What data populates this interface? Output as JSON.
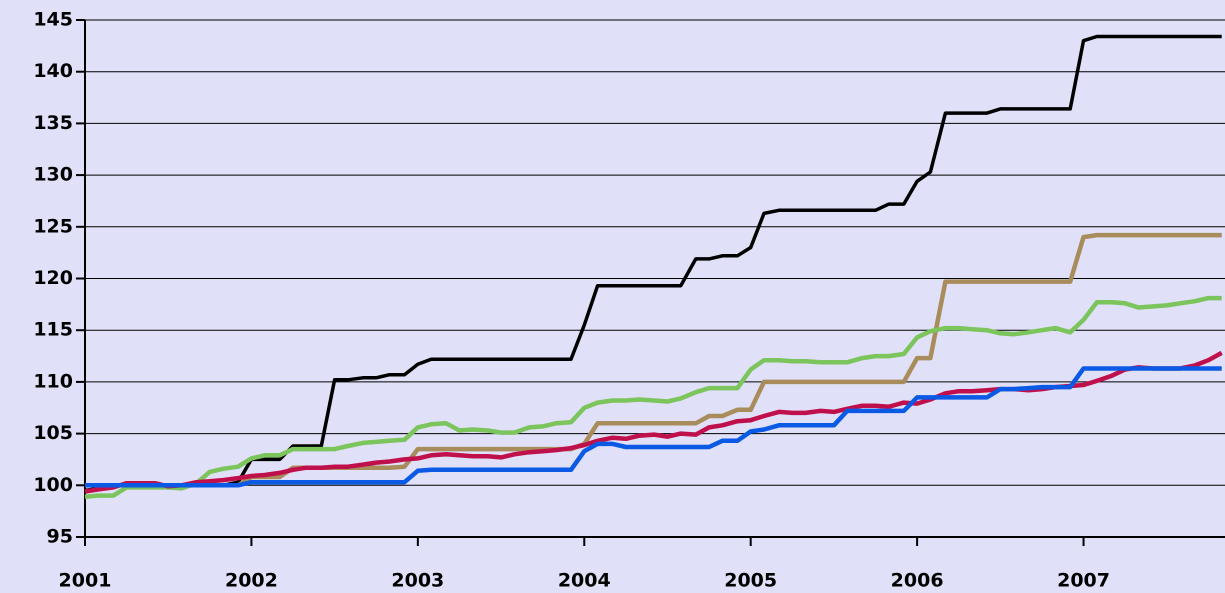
{
  "chart_data": {
    "type": "line",
    "x": [
      2001,
      2001.08,
      2001.17,
      2001.25,
      2001.33,
      2001.42,
      2001.5,
      2001.58,
      2001.67,
      2001.75,
      2001.83,
      2001.92,
      2002,
      2002.08,
      2002.17,
      2002.25,
      2002.33,
      2002.42,
      2002.5,
      2002.58,
      2002.67,
      2002.75,
      2002.83,
      2002.92,
      2003,
      2003.08,
      2003.17,
      2003.25,
      2003.33,
      2003.42,
      2003.5,
      2003.58,
      2003.67,
      2003.75,
      2003.83,
      2003.92,
      2004,
      2004.08,
      2004.17,
      2004.25,
      2004.33,
      2004.42,
      2004.5,
      2004.58,
      2004.67,
      2004.75,
      2004.83,
      2004.92,
      2005,
      2005.08,
      2005.17,
      2005.25,
      2005.33,
      2005.42,
      2005.5,
      2005.58,
      2005.67,
      2005.75,
      2005.83,
      2005.92,
      2006,
      2006.08,
      2006.17,
      2006.25,
      2006.33,
      2006.42,
      2006.5,
      2006.58,
      2006.67,
      2006.75,
      2006.83,
      2006.92,
      2007,
      2007.08,
      2007.17,
      2007.25,
      2007.33,
      2007.42,
      2007.5,
      2007.58,
      2007.67,
      2007.75,
      2007.83
    ],
    "series": [
      {
        "color": "#000000",
        "values": [
          99.5,
          99.7,
          100,
          100,
          100,
          100,
          100,
          100,
          100,
          100,
          100,
          100.3,
          102.5,
          102.5,
          102.5,
          103.8,
          103.8,
          103.8,
          110.2,
          110.2,
          110.4,
          110.4,
          110.7,
          110.7,
          111.7,
          112.2,
          112.2,
          112.2,
          112.2,
          112.2,
          112.2,
          112.2,
          112.2,
          112.2,
          112.2,
          112.2,
          115.5,
          119.3,
          119.3,
          119.3,
          119.3,
          119.3,
          119.3,
          119.3,
          121.9,
          121.9,
          122.2,
          122.2,
          123,
          126.3,
          126.6,
          126.6,
          126.6,
          126.6,
          126.6,
          126.6,
          126.6,
          126.6,
          127.2,
          127.2,
          129.4,
          130.3,
          136,
          136,
          136,
          136,
          136.4,
          136.4,
          136.4,
          136.4,
          136.4,
          136.4,
          143,
          143.4,
          143.4,
          143.4,
          143.4,
          143.4,
          143.4,
          143.4,
          143.4,
          143.4,
          143.4
        ]
      },
      {
        "color": "#a88c5c",
        "values": [
          100,
          100,
          100,
          100,
          100,
          100,
          100,
          100,
          100,
          100,
          100,
          100,
          100.8,
          100.8,
          100.8,
          101.7,
          101.7,
          101.7,
          101.7,
          101.7,
          101.7,
          101.7,
          101.7,
          101.8,
          103.5,
          103.5,
          103.5,
          103.5,
          103.5,
          103.5,
          103.5,
          103.5,
          103.5,
          103.5,
          103.5,
          103.5,
          104,
          106,
          106,
          106,
          106,
          106,
          106,
          106,
          106,
          106.7,
          106.7,
          107.3,
          107.3,
          110,
          110,
          110,
          110,
          110,
          110,
          110,
          110,
          110,
          110,
          110,
          112.3,
          112.3,
          119.7,
          119.7,
          119.7,
          119.7,
          119.7,
          119.7,
          119.7,
          119.7,
          119.7,
          119.7,
          124,
          124.2,
          124.2,
          124.2,
          124.2,
          124.2,
          124.2,
          124.2,
          124.2,
          124.2,
          124.2
        ]
      },
      {
        "color": "#7cc45c",
        "values": [
          98.9,
          99,
          99,
          99.8,
          99.8,
          99.8,
          99.8,
          99.7,
          100.2,
          101.3,
          101.6,
          101.8,
          102.6,
          102.9,
          102.9,
          103.5,
          103.5,
          103.5,
          103.5,
          103.8,
          104.1,
          104.2,
          104.3,
          104.4,
          105.6,
          105.9,
          106,
          105.3,
          105.4,
          105.3,
          105.1,
          105.1,
          105.6,
          105.7,
          106,
          106.1,
          107.5,
          108,
          108.2,
          108.2,
          108.3,
          108.2,
          108.1,
          108.4,
          109,
          109.4,
          109.4,
          109.4,
          111.2,
          112.1,
          112.1,
          112,
          112,
          111.9,
          111.9,
          111.9,
          112.3,
          112.5,
          112.5,
          112.7,
          114.3,
          114.9,
          115.2,
          115.2,
          115.1,
          115,
          114.7,
          114.6,
          114.8,
          115,
          115.2,
          114.8,
          116,
          117.7,
          117.7,
          117.6,
          117.2,
          117.3,
          117.4,
          117.6,
          117.8,
          118.1,
          118.1
        ]
      },
      {
        "color": "#c0104c",
        "values": [
          99.4,
          99.6,
          99.8,
          100.2,
          100.2,
          100.2,
          99.9,
          100,
          100.3,
          100.4,
          100.5,
          100.7,
          100.9,
          101,
          101.2,
          101.5,
          101.7,
          101.7,
          101.8,
          101.8,
          102,
          102.2,
          102.3,
          102.5,
          102.6,
          102.9,
          103,
          102.9,
          102.8,
          102.8,
          102.7,
          103,
          103.2,
          103.3,
          103.4,
          103.6,
          103.9,
          104.3,
          104.6,
          104.5,
          104.8,
          104.9,
          104.7,
          105,
          104.9,
          105.6,
          105.8,
          106.2,
          106.3,
          106.7,
          107.1,
          107,
          107,
          107.2,
          107.1,
          107.4,
          107.7,
          107.7,
          107.6,
          108,
          107.9,
          108.3,
          108.9,
          109.1,
          109.1,
          109.2,
          109.3,
          109.3,
          109.2,
          109.3,
          109.5,
          109.6,
          109.7,
          110.1,
          110.6,
          111.2,
          111.4,
          111.3,
          111.3,
          111.3,
          111.6,
          112.1,
          112.8
        ]
      },
      {
        "color": "#0a5ae6",
        "values": [
          100,
          100,
          100,
          100,
          100,
          100,
          100,
          100,
          100,
          100,
          100,
          100,
          100.3,
          100.3,
          100.3,
          100.3,
          100.3,
          100.3,
          100.3,
          100.3,
          100.3,
          100.3,
          100.3,
          100.3,
          101.4,
          101.5,
          101.5,
          101.5,
          101.5,
          101.5,
          101.5,
          101.5,
          101.5,
          101.5,
          101.5,
          101.5,
          103.3,
          104,
          104,
          103.7,
          103.7,
          103.7,
          103.7,
          103.7,
          103.7,
          103.7,
          104.3,
          104.3,
          105.2,
          105.4,
          105.8,
          105.8,
          105.8,
          105.8,
          105.8,
          107.2,
          107.2,
          107.2,
          107.2,
          107.2,
          108.5,
          108.5,
          108.5,
          108.5,
          108.5,
          108.5,
          109.3,
          109.3,
          109.4,
          109.5,
          109.5,
          109.5,
          111.3,
          111.3,
          111.3,
          111.3,
          111.3,
          111.3,
          111.3,
          111.3,
          111.3,
          111.3,
          111.3
        ]
      }
    ],
    "xlim": [
      2001,
      2007.85
    ],
    "xticks": [
      2001,
      2002,
      2003,
      2004,
      2005,
      2006,
      2007
    ],
    "ylim": [
      95,
      145
    ],
    "yticks": [
      95,
      100,
      105,
      110,
      115,
      120,
      125,
      130,
      135,
      140,
      145
    ],
    "grid": true
  }
}
